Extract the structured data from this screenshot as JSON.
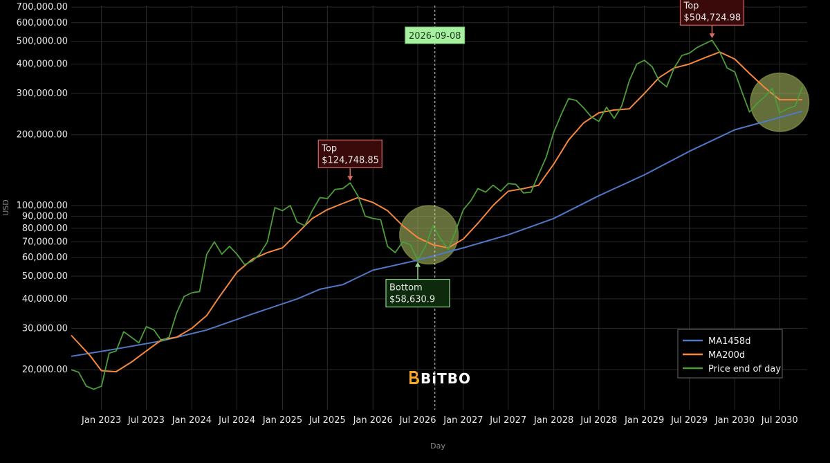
{
  "colors": {
    "background": "#000000",
    "grid": "#2a2a2a",
    "ma1458": "#4f79c7",
    "ma200": "#f5883e",
    "price": "#4c9e3a",
    "top_fill": "#3a0a0a",
    "top_border": "#d46a6a",
    "bottom_fill": "#0d2a0d",
    "bottom_border": "#8fd68f",
    "cursor_label": "#a6f0a0",
    "highlight_circle": "#b4c86a"
  },
  "brand": {
    "name": "BiTBO",
    "icon": "bitbo-logo-icon"
  },
  "chart_data": {
    "type": "line",
    "xlabel": "Day",
    "ylabel": "USD",
    "y_scale": "log",
    "ylim": [
      13500,
      710000
    ],
    "xlim": [
      "2022-09-01",
      "2030-10-20"
    ],
    "grid": true,
    "legend_position": "bottom-right",
    "x_ticks": [
      {
        "date": "2023-01-01",
        "label": "Jan 2023"
      },
      {
        "date": "2023-07-01",
        "label": "Jul 2023"
      },
      {
        "date": "2024-01-01",
        "label": "Jan 2024"
      },
      {
        "date": "2024-07-01",
        "label": "Jul 2024"
      },
      {
        "date": "2025-01-01",
        "label": "Jan 2025"
      },
      {
        "date": "2025-07-01",
        "label": "Jul 2025"
      },
      {
        "date": "2026-01-01",
        "label": "Jan 2026"
      },
      {
        "date": "2026-07-01",
        "label": "Jul 2026"
      },
      {
        "date": "2027-01-01",
        "label": "Jan 2027"
      },
      {
        "date": "2027-07-01",
        "label": "Jul 2027"
      },
      {
        "date": "2028-01-01",
        "label": "Jan 2028"
      },
      {
        "date": "2028-07-01",
        "label": "Jul 2028"
      },
      {
        "date": "2029-01-01",
        "label": "Jan 2029"
      },
      {
        "date": "2029-07-01",
        "label": "Jul 2029"
      },
      {
        "date": "2030-01-01",
        "label": "Jan 2030"
      },
      {
        "date": "2030-07-01",
        "label": "Jul 2030"
      }
    ],
    "y_ticks": [
      {
        "value": 20000,
        "label": "20,000.00"
      },
      {
        "value": 30000,
        "label": "30,000.00"
      },
      {
        "value": 40000,
        "label": "40,000.00"
      },
      {
        "value": 50000,
        "label": "50,000.00"
      },
      {
        "value": 60000,
        "label": "60,000.00"
      },
      {
        "value": 70000,
        "label": "70,000.00"
      },
      {
        "value": 80000,
        "label": "80,000.00"
      },
      {
        "value": 90000,
        "label": "90,000.00"
      },
      {
        "value": 100000,
        "label": "100,000.00"
      },
      {
        "value": 200000,
        "label": "200,000.00"
      },
      {
        "value": 300000,
        "label": "300,000.00"
      },
      {
        "value": 400000,
        "label": "400,000.00"
      },
      {
        "value": 500000,
        "label": "500,000.00"
      },
      {
        "value": 600000,
        "label": "600,000.00"
      },
      {
        "value": 700000,
        "label": "700,000.00"
      }
    ],
    "series": [
      {
        "name": "MA1458d",
        "color": "#4f79c7",
        "points": [
          [
            "2022-09-01",
            22800
          ],
          [
            "2023-03-01",
            24500
          ],
          [
            "2023-09-01",
            26500
          ],
          [
            "2024-03-01",
            29500
          ],
          [
            "2024-09-01",
            34500
          ],
          [
            "2025-03-01",
            40000
          ],
          [
            "2025-06-01",
            44000
          ],
          [
            "2025-09-01",
            46000
          ],
          [
            "2026-01-01",
            53000
          ],
          [
            "2026-07-01",
            58500
          ],
          [
            "2027-01-01",
            66000
          ],
          [
            "2027-07-01",
            75000
          ],
          [
            "2028-01-01",
            88000
          ],
          [
            "2028-07-01",
            110000
          ],
          [
            "2029-01-01",
            135000
          ],
          [
            "2029-07-01",
            170000
          ],
          [
            "2030-01-01",
            210000
          ],
          [
            "2030-10-01",
            252000
          ]
        ]
      },
      {
        "name": "MA200d",
        "color": "#f5883e",
        "points": [
          [
            "2022-09-01",
            28000
          ],
          [
            "2022-11-15",
            23000
          ],
          [
            "2023-01-01",
            19800
          ],
          [
            "2023-03-01",
            19600
          ],
          [
            "2023-05-01",
            21500
          ],
          [
            "2023-07-01",
            24000
          ],
          [
            "2023-09-01",
            26800
          ],
          [
            "2023-11-01",
            27500
          ],
          [
            "2024-01-01",
            30000
          ],
          [
            "2024-03-01",
            34000
          ],
          [
            "2024-04-15",
            40000
          ],
          [
            "2024-07-01",
            52000
          ],
          [
            "2024-09-01",
            59000
          ],
          [
            "2024-11-01",
            63000
          ],
          [
            "2025-01-01",
            66000
          ],
          [
            "2025-03-01",
            76000
          ],
          [
            "2025-05-01",
            88000
          ],
          [
            "2025-07-01",
            96000
          ],
          [
            "2025-09-01",
            102000
          ],
          [
            "2025-11-01",
            108000
          ],
          [
            "2026-01-01",
            103000
          ],
          [
            "2026-03-01",
            95000
          ],
          [
            "2026-05-01",
            82000
          ],
          [
            "2026-07-01",
            73000
          ],
          [
            "2026-09-01",
            68000
          ],
          [
            "2026-11-01",
            66000
          ],
          [
            "2027-01-01",
            72000
          ],
          [
            "2027-03-01",
            84000
          ],
          [
            "2027-05-01",
            100000
          ],
          [
            "2027-07-01",
            115000
          ],
          [
            "2027-09-01",
            118000
          ],
          [
            "2027-11-01",
            122000
          ],
          [
            "2028-01-01",
            150000
          ],
          [
            "2028-03-01",
            190000
          ],
          [
            "2028-05-01",
            225000
          ],
          [
            "2028-07-01",
            248000
          ],
          [
            "2028-09-01",
            255000
          ],
          [
            "2028-11-01",
            258000
          ],
          [
            "2029-01-01",
            300000
          ],
          [
            "2029-03-01",
            350000
          ],
          [
            "2029-05-01",
            385000
          ],
          [
            "2029-07-01",
            400000
          ],
          [
            "2029-09-01",
            425000
          ],
          [
            "2029-11-01",
            450000
          ],
          [
            "2030-01-01",
            420000
          ],
          [
            "2030-03-01",
            365000
          ],
          [
            "2030-05-01",
            318000
          ],
          [
            "2030-07-01",
            282000
          ],
          [
            "2030-10-01",
            282000
          ]
        ]
      },
      {
        "name": "Price end of day",
        "color": "#4c9e3a",
        "points": [
          [
            "2022-09-01",
            20000
          ],
          [
            "2022-10-01",
            19500
          ],
          [
            "2022-11-01",
            17000
          ],
          [
            "2022-12-01",
            16500
          ],
          [
            "2023-01-01",
            17000
          ],
          [
            "2023-02-01",
            23500
          ],
          [
            "2023-03-01",
            24000
          ],
          [
            "2023-04-01",
            29000
          ],
          [
            "2023-05-01",
            27500
          ],
          [
            "2023-06-01",
            26000
          ],
          [
            "2023-07-01",
            30500
          ],
          [
            "2023-08-01",
            29500
          ],
          [
            "2023-09-01",
            26500
          ],
          [
            "2023-10-01",
            27500
          ],
          [
            "2023-11-01",
            35000
          ],
          [
            "2023-12-01",
            41000
          ],
          [
            "2024-01-01",
            42500
          ],
          [
            "2024-02-01",
            43000
          ],
          [
            "2024-03-01",
            62000
          ],
          [
            "2024-04-01",
            70000
          ],
          [
            "2024-05-01",
            62000
          ],
          [
            "2024-06-01",
            67000
          ],
          [
            "2024-07-01",
            62000
          ],
          [
            "2024-08-01",
            56000
          ],
          [
            "2024-09-01",
            58000
          ],
          [
            "2024-10-01",
            62000
          ],
          [
            "2024-11-01",
            70000
          ],
          [
            "2024-12-01",
            98000
          ],
          [
            "2025-01-01",
            95000
          ],
          [
            "2025-02-01",
            100000
          ],
          [
            "2025-03-01",
            85000
          ],
          [
            "2025-04-01",
            82000
          ],
          [
            "2025-05-01",
            95000
          ],
          [
            "2025-06-01",
            108000
          ],
          [
            "2025-07-01",
            107000
          ],
          [
            "2025-08-01",
            117000
          ],
          [
            "2025-09-01",
            118000
          ],
          [
            "2025-10-01",
            124700
          ],
          [
            "2025-11-01",
            110000
          ],
          [
            "2025-12-01",
            90000
          ],
          [
            "2026-01-01",
            88000
          ],
          [
            "2026-02-01",
            87000
          ],
          [
            "2026-03-01",
            67000
          ],
          [
            "2026-04-01",
            63000
          ],
          [
            "2026-05-01",
            70000
          ],
          [
            "2026-06-01",
            68000
          ],
          [
            "2026-07-01",
            58630
          ],
          [
            "2026-08-01",
            67000
          ],
          [
            "2026-09-01",
            82000
          ],
          [
            "2026-10-01",
            72000
          ],
          [
            "2026-11-01",
            65000
          ],
          [
            "2026-12-01",
            78000
          ],
          [
            "2027-01-01",
            96000
          ],
          [
            "2027-02-01",
            105000
          ],
          [
            "2027-03-01",
            118000
          ],
          [
            "2027-04-01",
            114000
          ],
          [
            "2027-05-01",
            122000
          ],
          [
            "2027-06-01",
            115000
          ],
          [
            "2027-07-01",
            124000
          ],
          [
            "2027-08-01",
            123000
          ],
          [
            "2027-09-01",
            113000
          ],
          [
            "2027-10-01",
            114000
          ],
          [
            "2027-11-01",
            136000
          ],
          [
            "2027-12-01",
            160000
          ],
          [
            "2028-01-01",
            205000
          ],
          [
            "2028-02-01",
            245000
          ],
          [
            "2028-03-01",
            285000
          ],
          [
            "2028-04-01",
            280000
          ],
          [
            "2028-05-01",
            260000
          ],
          [
            "2028-06-01",
            238000
          ],
          [
            "2028-07-01",
            228000
          ],
          [
            "2028-08-01",
            262000
          ],
          [
            "2028-09-01",
            235000
          ],
          [
            "2028-10-01",
            265000
          ],
          [
            "2028-11-01",
            340000
          ],
          [
            "2028-12-01",
            400000
          ],
          [
            "2029-01-01",
            415000
          ],
          [
            "2029-02-01",
            390000
          ],
          [
            "2029-03-01",
            340000
          ],
          [
            "2029-04-01",
            320000
          ],
          [
            "2029-05-01",
            385000
          ],
          [
            "2029-06-01",
            435000
          ],
          [
            "2029-07-01",
            445000
          ],
          [
            "2029-08-01",
            470000
          ],
          [
            "2029-09-01",
            488000
          ],
          [
            "2029-10-01",
            504725
          ],
          [
            "2029-11-01",
            450000
          ],
          [
            "2029-12-01",
            385000
          ],
          [
            "2030-01-01",
            370000
          ],
          [
            "2030-02-01",
            300000
          ],
          [
            "2030-03-01",
            250000
          ],
          [
            "2030-04-01",
            272000
          ],
          [
            "2030-05-01",
            290000
          ],
          [
            "2030-06-01",
            315000
          ],
          [
            "2030-07-01",
            248000
          ],
          [
            "2030-08-01",
            258000
          ],
          [
            "2030-09-01",
            265000
          ],
          [
            "2030-10-01",
            320000
          ]
        ]
      }
    ],
    "annotations": [
      {
        "kind": "top",
        "label": "Top",
        "value_text": "$124,748.85",
        "date": "2025-10-01",
        "value": 124748.85
      },
      {
        "kind": "top",
        "label": "Top",
        "value_text": "$504,724.98",
        "date": "2029-10-01",
        "value": 504724.98
      },
      {
        "kind": "bottom",
        "label": "Bottom",
        "value_text": "$58,630.9",
        "date": "2026-07-01",
        "value": 58630.9
      }
    ],
    "cursor": {
      "date": "2026-09-08",
      "label": "2026-09-08"
    },
    "highlights": [
      {
        "date": "2026-08-15",
        "value": 75000
      },
      {
        "date": "2030-07-01",
        "value": 275000
      }
    ]
  }
}
